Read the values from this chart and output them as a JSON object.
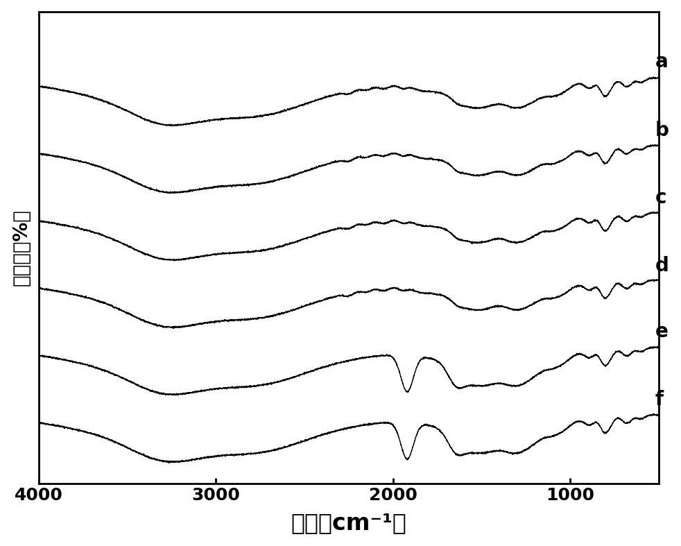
{
  "x_min": 500,
  "x_max": 4000,
  "x_ticks": [
    4000,
    3000,
    2000,
    1000
  ],
  "xlabel": "波数（cm⁻¹）",
  "ylabel": "透光率（%）",
  "labels": [
    "a",
    "b",
    "c",
    "d",
    "e",
    "f"
  ],
  "offsets": [
    5.0,
    4.0,
    3.0,
    2.0,
    1.0,
    0.0
  ],
  "line_color": "#000000",
  "background_color": "#ffffff",
  "xlabel_fontsize": 24,
  "ylabel_fontsize": 20,
  "label_fontsize": 20,
  "tick_fontsize": 18
}
